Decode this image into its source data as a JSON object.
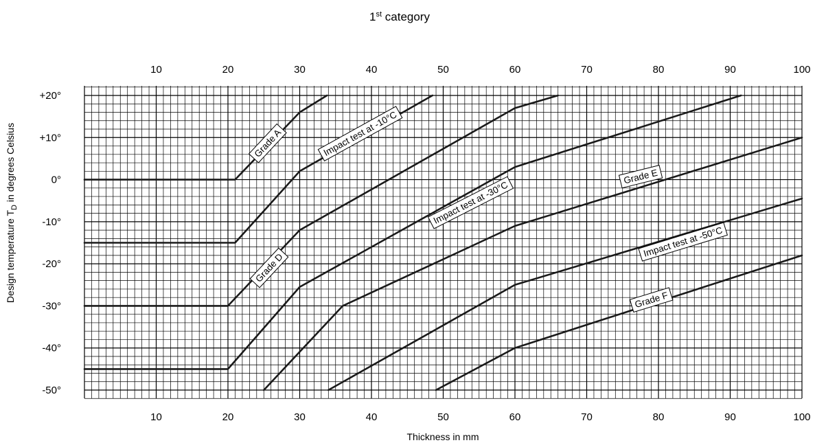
{
  "chart_data": {
    "type": "line",
    "title": "1",
    "title_sup": "st",
    "title_rest": " category",
    "xlabel": "Thickness in mm",
    "ylabel_main": "Design temperature T",
    "ylabel_sub": "D",
    "ylabel_rest": " in degrees Celsius",
    "xlim": [
      0,
      100
    ],
    "ylim": [
      -52,
      22
    ],
    "grid": true,
    "x_ticks": [
      10,
      20,
      30,
      40,
      50,
      60,
      70,
      80,
      90,
      100
    ],
    "x_tick_labels": [
      "10",
      "20",
      "30",
      "40",
      "50",
      "60",
      "70",
      "80",
      "90",
      "100"
    ],
    "y_ticks": [
      20,
      10,
      0,
      -10,
      -20,
      -30,
      -40,
      -50
    ],
    "y_tick_labels": [
      "+20°",
      "+10°",
      "0°",
      "-10°",
      "-20°",
      "-30°",
      "-40°",
      "-50°"
    ],
    "curves": [
      {
        "points": [
          [
            0,
            0
          ],
          [
            21,
            0
          ],
          [
            30,
            16
          ],
          [
            33.8,
            20
          ]
        ]
      },
      {
        "points": [
          [
            0,
            -15
          ],
          [
            21,
            -15
          ],
          [
            30,
            2
          ],
          [
            48.5,
            20
          ]
        ]
      },
      {
        "points": [
          [
            0,
            -30
          ],
          [
            20,
            -30
          ],
          [
            30,
            -12
          ],
          [
            60,
            17
          ],
          [
            66,
            20
          ]
        ]
      },
      {
        "points": [
          [
            0,
            -45
          ],
          [
            20,
            -45
          ],
          [
            30,
            -25.5
          ],
          [
            60,
            3
          ],
          [
            91.5,
            20
          ]
        ]
      },
      {
        "points": [
          [
            25,
            -50
          ],
          [
            36,
            -30
          ],
          [
            60,
            -11
          ],
          [
            100,
            10
          ]
        ]
      },
      {
        "points": [
          [
            34,
            -50
          ],
          [
            60,
            -25
          ],
          [
            100,
            -4.5
          ]
        ]
      },
      {
        "points": [
          [
            49,
            -50
          ],
          [
            60,
            -40
          ],
          [
            100,
            -18
          ]
        ]
      }
    ],
    "annotations": [
      {
        "text": "Grade A",
        "x": 25.5,
        "y": 8.7,
        "angle": -47
      },
      {
        "text": "Impact test at -10°C",
        "x": 38.4,
        "y": 11.0,
        "angle": -29
      },
      {
        "text": "Grade D",
        "x": 25.7,
        "y": -20.9,
        "angle": -47
      },
      {
        "text": "Impact test at -30°C",
        "x": 53.8,
        "y": -5.4,
        "angle": -27
      },
      {
        "text": "Grade E",
        "x": 77.5,
        "y": 0.8,
        "angle": -14
      },
      {
        "text": "Impact test at -50°C",
        "x": 83.4,
        "y": -14.7,
        "angle": -17
      },
      {
        "text": "Grade F",
        "x": 79.0,
        "y": -28.5,
        "angle": -17
      }
    ],
    "colors": {
      "line": "#1a1a1a",
      "grid": "#000000",
      "background": "#ffffff"
    }
  }
}
